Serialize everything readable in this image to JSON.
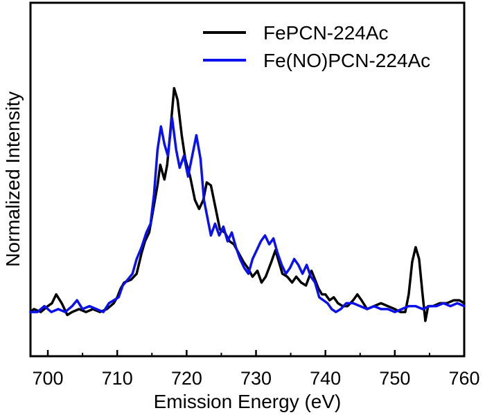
{
  "chart_data": {
    "type": "line",
    "title": "",
    "xlabel": "Emission Energy (eV)",
    "ylabel": "Normalized Intensity",
    "xlim": [
      697.5,
      760
    ],
    "ylim": [
      -0.15,
      1.05
    ],
    "xticks": [
      700,
      710,
      720,
      730,
      740,
      750,
      760
    ],
    "xtick_labels": [
      "700",
      "710",
      "720",
      "730",
      "740",
      "750",
      "760"
    ],
    "yticks": [],
    "grid": false,
    "legend_position": "top-right",
    "series": [
      {
        "name": "FePCN-224Ac",
        "color": "#000000",
        "points": [
          [
            697.5,
            0.0
          ],
          [
            698,
            0.01
          ],
          [
            699,
            0.0
          ],
          [
            700,
            0.02
          ],
          [
            700.6,
            0.03
          ],
          [
            701.2,
            0.06
          ],
          [
            702,
            0.03
          ],
          [
            702.8,
            -0.01
          ],
          [
            703.5,
            0.0
          ],
          [
            704.5,
            0.01
          ],
          [
            705.5,
            0.0
          ],
          [
            706.5,
            0.01
          ],
          [
            707.5,
            0.0
          ],
          [
            708.5,
            0.01
          ],
          [
            709.5,
            0.03
          ],
          [
            710,
            0.05
          ],
          [
            710.5,
            0.08
          ],
          [
            711,
            0.1
          ],
          [
            712,
            0.11
          ],
          [
            712.8,
            0.13
          ],
          [
            713.5,
            0.2
          ],
          [
            714,
            0.24
          ],
          [
            714.6,
            0.27
          ],
          [
            715.2,
            0.35
          ],
          [
            715.8,
            0.43
          ],
          [
            716.2,
            0.5
          ],
          [
            716.8,
            0.45
          ],
          [
            717.2,
            0.5
          ],
          [
            717.6,
            0.6
          ],
          [
            718.2,
            0.76
          ],
          [
            718.7,
            0.72
          ],
          [
            719.3,
            0.6
          ],
          [
            719.8,
            0.52
          ],
          [
            720.5,
            0.46
          ],
          [
            721.2,
            0.38
          ],
          [
            721.8,
            0.35
          ],
          [
            722.4,
            0.38
          ],
          [
            722.9,
            0.44
          ],
          [
            723.5,
            0.43
          ],
          [
            724.2,
            0.35
          ],
          [
            724.8,
            0.28
          ],
          [
            725.5,
            0.27
          ],
          [
            726.2,
            0.24
          ],
          [
            726.8,
            0.23
          ],
          [
            727.5,
            0.2
          ],
          [
            728.2,
            0.17
          ],
          [
            728.8,
            0.15
          ],
          [
            729.5,
            0.12
          ],
          [
            730.2,
            0.14
          ],
          [
            730.8,
            0.1
          ],
          [
            731.4,
            0.12
          ],
          [
            732.2,
            0.17
          ],
          [
            732.8,
            0.21
          ],
          [
            733.3,
            0.17
          ],
          [
            733.8,
            0.13
          ],
          [
            734.5,
            0.12
          ],
          [
            735.2,
            0.1
          ],
          [
            735.8,
            0.12
          ],
          [
            736.5,
            0.1
          ],
          [
            737.2,
            0.09
          ],
          [
            738,
            0.14
          ],
          [
            738.5,
            0.11
          ],
          [
            739,
            0.08
          ],
          [
            739.5,
            0.06
          ],
          [
            740,
            0.06
          ],
          [
            740.6,
            0.04
          ],
          [
            741.2,
            0.05
          ],
          [
            741.8,
            0.03
          ],
          [
            742.5,
            0.02
          ],
          [
            743.2,
            0.02
          ],
          [
            744,
            0.04
          ],
          [
            744.6,
            0.06
          ],
          [
            745.2,
            0.04
          ],
          [
            746,
            0.01
          ],
          [
            747,
            0.02
          ],
          [
            748,
            0.03
          ],
          [
            749,
            0.02
          ],
          [
            750,
            0.01
          ],
          [
            750.8,
            0.0
          ],
          [
            751.5,
            0.0
          ],
          [
            752,
            0.06
          ],
          [
            752.5,
            0.17
          ],
          [
            753,
            0.22
          ],
          [
            753.5,
            0.18
          ],
          [
            754,
            0.06
          ],
          [
            754.4,
            -0.03
          ],
          [
            754.8,
            0.02
          ],
          [
            755.5,
            0.02
          ],
          [
            756.5,
            0.03
          ],
          [
            757.5,
            0.03
          ],
          [
            758.5,
            0.04
          ],
          [
            759.3,
            0.04
          ],
          [
            760,
            0.03
          ]
        ]
      },
      {
        "name": "Fe(NO)PCN-224Ac",
        "color": "#0a10ee",
        "points": [
          [
            697.5,
            0.0
          ],
          [
            698.5,
            0.0
          ],
          [
            699.5,
            0.02
          ],
          [
            700.5,
            0.0
          ],
          [
            701.5,
            0.01
          ],
          [
            702.5,
            0.0
          ],
          [
            703.5,
            0.02
          ],
          [
            704.2,
            0.04
          ],
          [
            705,
            0.01
          ],
          [
            706,
            0.02
          ],
          [
            707,
            0.01
          ],
          [
            708,
            0.0
          ],
          [
            708.8,
            0.03
          ],
          [
            709.5,
            0.04
          ],
          [
            710.2,
            0.05
          ],
          [
            710.8,
            0.09
          ],
          [
            711.5,
            0.11
          ],
          [
            712.2,
            0.13
          ],
          [
            712.8,
            0.18
          ],
          [
            713.5,
            0.22
          ],
          [
            714.2,
            0.27
          ],
          [
            714.8,
            0.3
          ],
          [
            715.3,
            0.4
          ],
          [
            715.8,
            0.55
          ],
          [
            716.3,
            0.63
          ],
          [
            716.8,
            0.57
          ],
          [
            717.3,
            0.53
          ],
          [
            717.9,
            0.66
          ],
          [
            718.5,
            0.55
          ],
          [
            719,
            0.49
          ],
          [
            719.6,
            0.53
          ],
          [
            720.2,
            0.46
          ],
          [
            720.8,
            0.53
          ],
          [
            721.4,
            0.6
          ],
          [
            722,
            0.52
          ],
          [
            722.5,
            0.38
          ],
          [
            723,
            0.32
          ],
          [
            723.5,
            0.26
          ],
          [
            724.1,
            0.3
          ],
          [
            724.7,
            0.26
          ],
          [
            725.3,
            0.29
          ],
          [
            725.9,
            0.24
          ],
          [
            726.5,
            0.27
          ],
          [
            727.1,
            0.22
          ],
          [
            727.7,
            0.18
          ],
          [
            728.3,
            0.15
          ],
          [
            728.9,
            0.13
          ],
          [
            729.5,
            0.18
          ],
          [
            730.1,
            0.21
          ],
          [
            730.7,
            0.24
          ],
          [
            731.3,
            0.26
          ],
          [
            731.9,
            0.23
          ],
          [
            732.5,
            0.25
          ],
          [
            733.1,
            0.2
          ],
          [
            733.7,
            0.16
          ],
          [
            734.3,
            0.13
          ],
          [
            734.9,
            0.15
          ],
          [
            735.5,
            0.18
          ],
          [
            736.1,
            0.16
          ],
          [
            736.7,
            0.13
          ],
          [
            737.3,
            0.16
          ],
          [
            737.9,
            0.12
          ],
          [
            738.5,
            0.1
          ],
          [
            739.1,
            0.05
          ],
          [
            739.7,
            0.04
          ],
          [
            740.3,
            0.03
          ],
          [
            740.9,
            0.01
          ],
          [
            741.5,
            0.0
          ],
          [
            742.2,
            0.01
          ],
          [
            743,
            0.03
          ],
          [
            744,
            0.03
          ],
          [
            745,
            0.02
          ],
          [
            746,
            0.01
          ],
          [
            747,
            0.02
          ],
          [
            748,
            0.01
          ],
          [
            749,
            0.01
          ],
          [
            750,
            0.0
          ],
          [
            751,
            0.01
          ],
          [
            752,
            0.02
          ],
          [
            753,
            0.02
          ],
          [
            754,
            0.01
          ],
          [
            755,
            0.02
          ],
          [
            756,
            0.02
          ],
          [
            757,
            0.03
          ],
          [
            758,
            0.02
          ],
          [
            759,
            0.03
          ],
          [
            760,
            0.02
          ]
        ]
      }
    ]
  }
}
